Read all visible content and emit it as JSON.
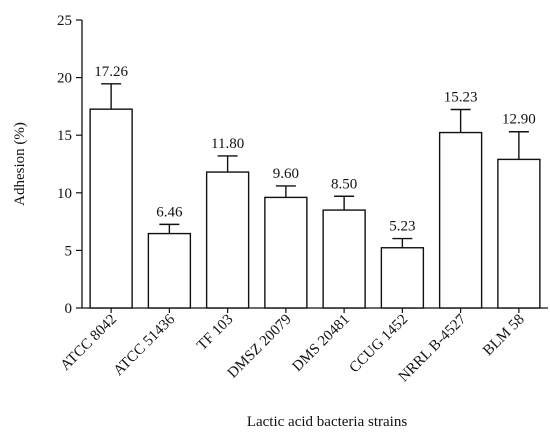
{
  "chart_data": {
    "type": "bar",
    "title": "",
    "xlabel": "Lactic acid bacteria strains",
    "ylabel": "Adhesion (%)",
    "ylim": [
      0,
      25
    ],
    "yticks": [
      0,
      5,
      10,
      15,
      20,
      25
    ],
    "grid": false,
    "categories": [
      "ATCC 8042",
      "ATCC 51436",
      "TF 103",
      "DMSZ 20079",
      "DMS 20481",
      "CCUG 1452",
      "NRRL B-4527",
      "BLM 58"
    ],
    "values": [
      17.26,
      6.46,
      11.8,
      9.6,
      8.5,
      5.23,
      15.23,
      12.9
    ],
    "value_labels": [
      "17.26",
      "6.46",
      "11.80",
      "9.60",
      "8.50",
      "5.23",
      "15.23",
      "12.90"
    ],
    "errors": [
      2.2,
      0.8,
      1.4,
      1.0,
      1.2,
      0.8,
      2.0,
      2.4
    ],
    "colors": {
      "bar_fill": "#ffffff",
      "bar_stroke": "#111111",
      "axis": "#111111"
    }
  }
}
